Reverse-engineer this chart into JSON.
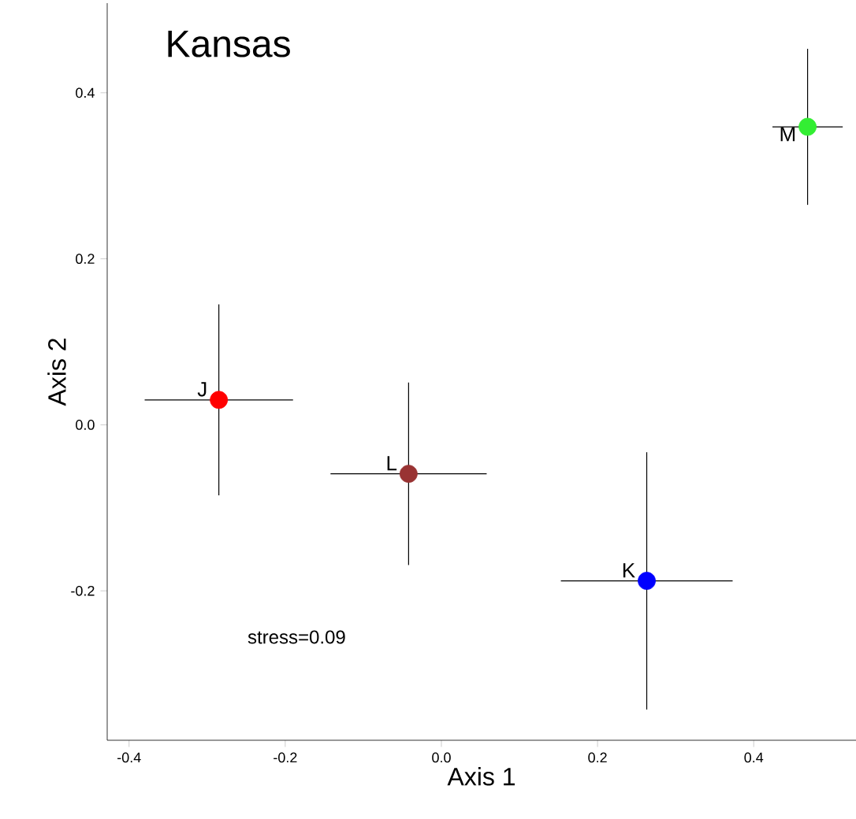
{
  "chart_data": {
    "type": "scatter",
    "title": "Kansas",
    "xlabel": "Axis 1",
    "ylabel": "Axis 2",
    "annotations": [
      "stress=0.09"
    ],
    "marker": "circle",
    "xlim": [
      -0.428,
      0.531
    ],
    "ylim": [
      -0.38,
      0.508
    ],
    "xticks": [
      -0.4,
      -0.2,
      {
        "value": 0,
        "label": "0.0"
      },
      0.2,
      0.4
    ],
    "yticks": [
      -0.2,
      {
        "value": 0,
        "label": "0.0"
      },
      0.2,
      0.4
    ],
    "series": [
      {
        "name": "J",
        "color": "#ff0000",
        "x": [
          -0.285
        ],
        "values": [
          0.03
        ],
        "errors": [
          0.115
        ],
        "xerrors": [
          0.095
        ]
      },
      {
        "name": "L",
        "color": "#993333",
        "x": [
          -0.042
        ],
        "values": [
          -0.059
        ],
        "errors": [
          0.11
        ],
        "xerrors": [
          0.1
        ]
      },
      {
        "name": "K",
        "color": "#0000ff",
        "x": [
          0.263
        ],
        "values": [
          -0.188
        ],
        "errors": [
          0.155
        ],
        "xerrors": [
          0.11
        ]
      },
      {
        "name": "M",
        "color": "#33ee33",
        "x": [
          0.469
        ],
        "values": [
          0.359
        ],
        "errors": [
          0.094
        ],
        "xerrors": [
          0.045
        ]
      }
    ]
  }
}
